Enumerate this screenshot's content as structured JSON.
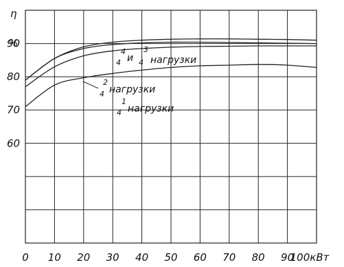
{
  "chart_data": {
    "type": "line",
    "title": "",
    "ylabel": "η",
    "yunit": "%",
    "xunit": "кВт",
    "xlabel": "",
    "xlim": [
      0,
      100
    ],
    "ylim": [
      30,
      100
    ],
    "grid": true,
    "x_ticks": [
      "0",
      "10",
      "20",
      "30",
      "40",
      "50",
      "60",
      "70",
      "80",
      "90",
      "100кВт"
    ],
    "y_ticks": [
      {
        "value": 90,
        "label": "90"
      },
      {
        "value": 80,
        "label": "80"
      },
      {
        "value": 70,
        "label": "70"
      },
      {
        "value": 60,
        "label": "60"
      }
    ],
    "series": [
      {
        "id": "full_and_three_quarter",
        "x": [
          0,
          10,
          20,
          30,
          40,
          50,
          60,
          70,
          80,
          90,
          100
        ],
        "y": [
          79,
          85.5,
          89,
          90.4,
          91,
          91.3,
          91.4,
          91.4,
          91.3,
          91.2,
          91
        ]
      },
      {
        "id": "three_quarter_lower",
        "x": [
          0,
          10,
          20,
          30,
          40,
          50,
          60,
          70,
          80,
          90,
          100
        ],
        "y": [
          79,
          85.5,
          88.5,
          89.7,
          90.2,
          90.4,
          90.4,
          90.3,
          90.2,
          90.1,
          90
        ]
      },
      {
        "id": "half_load",
        "x": [
          0,
          10,
          20,
          30,
          40,
          50,
          60,
          70,
          80,
          90,
          100
        ],
        "y": [
          77,
          83,
          86.3,
          87.8,
          88.5,
          88.9,
          89.1,
          89.2,
          89.3,
          89.3,
          89.3
        ]
      },
      {
        "id": "quarter_load",
        "x": [
          0,
          10,
          20,
          30,
          40,
          50,
          60,
          70,
          80,
          90,
          100
        ],
        "y": [
          71,
          77.5,
          79.7,
          81,
          82,
          82.8,
          83.3,
          83.5,
          83.7,
          83.5,
          82.8
        ]
      }
    ],
    "annotations": [
      {
        "id": "ann-top",
        "num_top": "4",
        "num_bottom": "4",
        "conj": "и",
        "num2_top": "3",
        "num2_bottom": "4",
        "text": "нагрузки"
      },
      {
        "id": "ann-mid",
        "num_top": "2",
        "num_bottom": "4",
        "text": "нагрузки"
      },
      {
        "id": "ann-low",
        "num_top": "1",
        "num_bottom": "4",
        "text": "нагрузки"
      }
    ]
  }
}
